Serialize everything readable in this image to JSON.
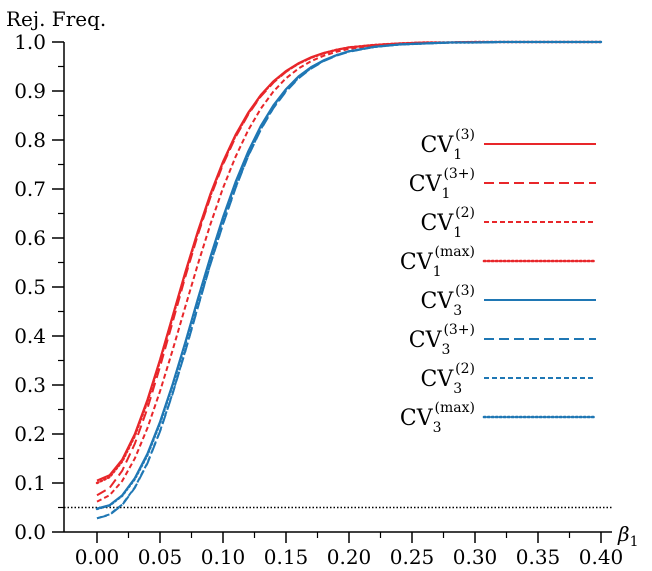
{
  "chart_data": {
    "type": "line",
    "title": "",
    "ylabel": "Rej. Freq.",
    "xlabel": "β1",
    "xlim": [
      0.0,
      0.4
    ],
    "ylim": [
      0.0,
      1.0
    ],
    "x_ticks": [
      "0.00",
      "0.05",
      "0.10",
      "0.15",
      "0.20",
      "0.25",
      "0.30",
      "0.35",
      "0.40"
    ],
    "y_ticks": [
      "0.0",
      "0.1",
      "0.2",
      "0.3",
      "0.4",
      "0.5",
      "0.6",
      "0.7",
      "0.8",
      "0.9",
      "1.0"
    ],
    "reference_line": {
      "y": 0.05,
      "style": "dotted",
      "color": "#000000"
    },
    "legend_position": "right",
    "grid": false,
    "colors": {
      "red": "#e8262a",
      "blue": "#1f77b4"
    },
    "x": [
      0.0,
      0.01,
      0.02,
      0.03,
      0.04,
      0.05,
      0.06,
      0.07,
      0.08,
      0.09,
      0.1,
      0.11,
      0.12,
      0.13,
      0.14,
      0.15,
      0.16,
      0.17,
      0.18,
      0.19,
      0.2,
      0.22,
      0.24,
      0.26,
      0.28,
      0.3,
      0.32,
      0.34,
      0.36,
      0.38,
      0.4
    ],
    "series": [
      {
        "base": "CV",
        "sub": "1",
        "sup": "(3)",
        "color": "#e8262a",
        "dash": "solid",
        "values": [
          0.105,
          0.116,
          0.148,
          0.2,
          0.27,
          0.352,
          0.441,
          0.53,
          0.614,
          0.69,
          0.756,
          0.811,
          0.856,
          0.892,
          0.92,
          0.941,
          0.957,
          0.969,
          0.978,
          0.984,
          0.989,
          0.994,
          0.997,
          0.999,
          0.999,
          1.0,
          1.0,
          1.0,
          1.0,
          1.0,
          1.0
        ]
      },
      {
        "base": "CV",
        "sub": "1",
        "sup": "(3+)",
        "color": "#e8262a",
        "dash": "dashed",
        "values": [
          0.075,
          0.09,
          0.125,
          0.18,
          0.252,
          0.337,
          0.428,
          0.52,
          0.606,
          0.683,
          0.75,
          0.806,
          0.852,
          0.889,
          0.917,
          0.939,
          0.956,
          0.968,
          0.977,
          0.984,
          0.989,
          0.994,
          0.997,
          0.999,
          0.999,
          1.0,
          1.0,
          1.0,
          1.0,
          1.0,
          1.0
        ]
      },
      {
        "base": "CV",
        "sub": "1",
        "sup": "(2)",
        "color": "#e8262a",
        "dash": "short-dashed",
        "values": [
          0.062,
          0.075,
          0.104,
          0.15,
          0.212,
          0.287,
          0.371,
          0.459,
          0.546,
          0.628,
          0.702,
          0.766,
          0.82,
          0.864,
          0.899,
          0.926,
          0.946,
          0.961,
          0.972,
          0.98,
          0.986,
          0.993,
          0.996,
          0.998,
          0.999,
          1.0,
          1.0,
          1.0,
          1.0,
          1.0,
          1.0
        ]
      },
      {
        "base": "CV",
        "sub": "1",
        "sup": "(max)",
        "color": "#e8262a",
        "dash": "dotted",
        "values": [
          0.1,
          0.112,
          0.144,
          0.196,
          0.266,
          0.349,
          0.438,
          0.527,
          0.611,
          0.687,
          0.754,
          0.809,
          0.854,
          0.891,
          0.919,
          0.94,
          0.956,
          0.968,
          0.977,
          0.984,
          0.989,
          0.994,
          0.997,
          0.999,
          0.999,
          1.0,
          1.0,
          1.0,
          1.0,
          1.0,
          1.0
        ]
      },
      {
        "base": "CV",
        "sub": "3",
        "sup": "(3)",
        "color": "#1f77b4",
        "dash": "solid",
        "values": [
          0.048,
          0.055,
          0.075,
          0.11,
          0.16,
          0.225,
          0.302,
          0.387,
          0.476,
          0.562,
          0.643,
          0.715,
          0.777,
          0.829,
          0.871,
          0.904,
          0.93,
          0.949,
          0.963,
          0.973,
          0.981,
          0.99,
          0.995,
          0.997,
          0.999,
          0.999,
          1.0,
          1.0,
          1.0,
          1.0,
          1.0
        ]
      },
      {
        "base": "CV",
        "sub": "3",
        "sup": "(3+)",
        "color": "#1f77b4",
        "dash": "dashed",
        "values": [
          0.028,
          0.035,
          0.055,
          0.09,
          0.14,
          0.205,
          0.282,
          0.368,
          0.458,
          0.546,
          0.628,
          0.702,
          0.767,
          0.821,
          0.865,
          0.899,
          0.926,
          0.946,
          0.961,
          0.972,
          0.98,
          0.99,
          0.995,
          0.997,
          0.999,
          0.999,
          1.0,
          1.0,
          1.0,
          1.0,
          1.0
        ]
      },
      {
        "base": "CV",
        "sub": "3",
        "sup": "(2)",
        "color": "#1f77b4",
        "dash": "short-dashed",
        "values": [
          0.028,
          0.036,
          0.056,
          0.091,
          0.141,
          0.206,
          0.283,
          0.369,
          0.459,
          0.547,
          0.629,
          0.703,
          0.768,
          0.822,
          0.866,
          0.9,
          0.927,
          0.947,
          0.962,
          0.973,
          0.981,
          0.99,
          0.995,
          0.997,
          0.999,
          0.999,
          1.0,
          1.0,
          1.0,
          1.0,
          1.0
        ]
      },
      {
        "base": "CV",
        "sub": "3",
        "sup": "(max)",
        "color": "#1f77b4",
        "dash": "dotted",
        "values": [
          0.047,
          0.054,
          0.074,
          0.108,
          0.157,
          0.222,
          0.299,
          0.384,
          0.473,
          0.559,
          0.64,
          0.712,
          0.775,
          0.827,
          0.869,
          0.903,
          0.929,
          0.948,
          0.962,
          0.973,
          0.981,
          0.99,
          0.995,
          0.997,
          0.999,
          0.999,
          1.0,
          1.0,
          1.0,
          1.0,
          1.0
        ]
      }
    ]
  }
}
